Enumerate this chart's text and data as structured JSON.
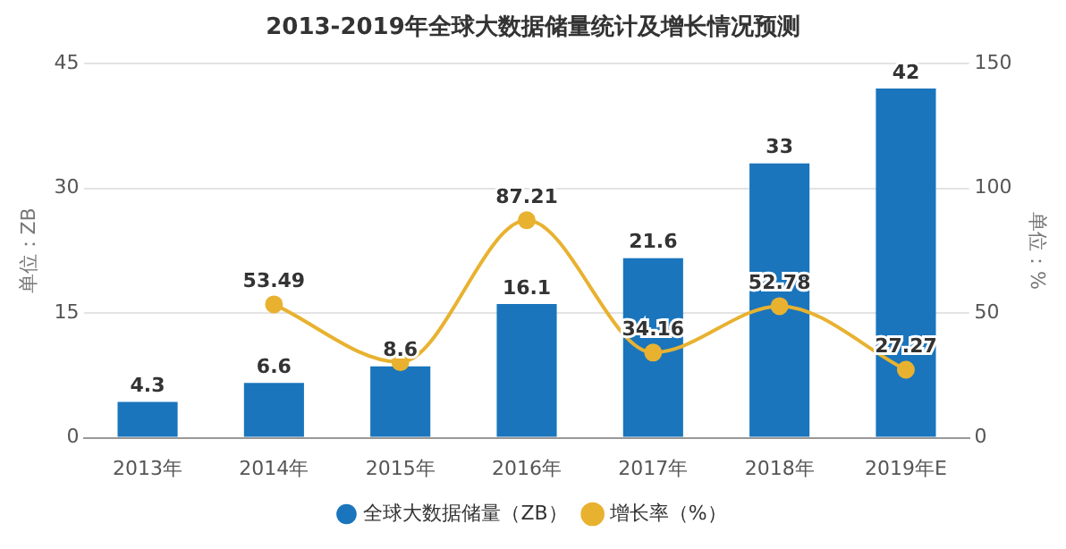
{
  "chart_data": {
    "type": "bar",
    "title": "2013-2019年全球大数据储量统计及增长情况预测",
    "categories": [
      "2013年",
      "2014年",
      "2015年",
      "2016年",
      "2017年",
      "2018年",
      "2019年E"
    ],
    "series": [
      {
        "name": "全球大数据储量（ZB）",
        "color": "#1a75bc",
        "values": [
          4.3,
          6.6,
          8.6,
          16.1,
          21.6,
          33,
          42
        ],
        "value_labels": [
          "4.3",
          "6.6",
          "8.6",
          "16.1",
          "21.6",
          "33",
          "42"
        ]
      },
      {
        "name": "增长率（%）",
        "type": "line",
        "axis": "y2",
        "color": "#e8b230",
        "values": [
          null,
          53.49,
          30.3,
          87.21,
          34.16,
          52.78,
          27.27
        ],
        "value_labels": [
          null,
          "53.49",
          null,
          "87.21",
          "34.16",
          "52.78",
          "27.27"
        ]
      }
    ],
    "ylabel": "单位：ZB",
    "y2label": "单位：%",
    "ylim": [
      0,
      45
    ],
    "yticks": [
      0,
      15,
      30,
      45
    ],
    "y2lim": [
      0,
      150
    ],
    "y2ticks": [
      0,
      50,
      100,
      150
    ],
    "grid": "y",
    "legend": "bottom",
    "marker": "circle"
  }
}
